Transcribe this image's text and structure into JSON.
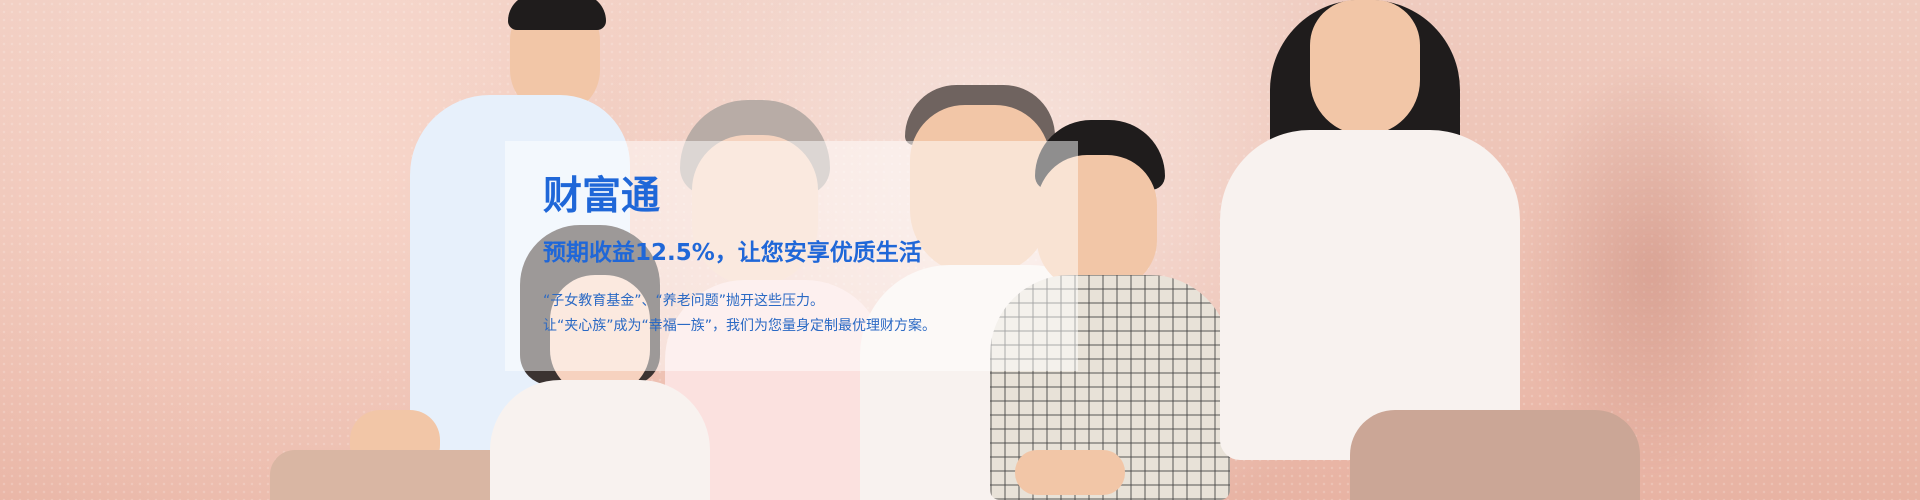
{
  "banner": {
    "title": "财富通",
    "subtitle": "预期收益12.5%，让您安享优质生活",
    "description_lines": [
      "“子女教育基金”、“养老问题”抛开这些压力。",
      "让“夹心族”成为“幸福一族”，我们为您量身定制最优理财方案。"
    ]
  },
  "colors": {
    "accent_blue": "#1f67d8",
    "background": "#eec2b4"
  }
}
